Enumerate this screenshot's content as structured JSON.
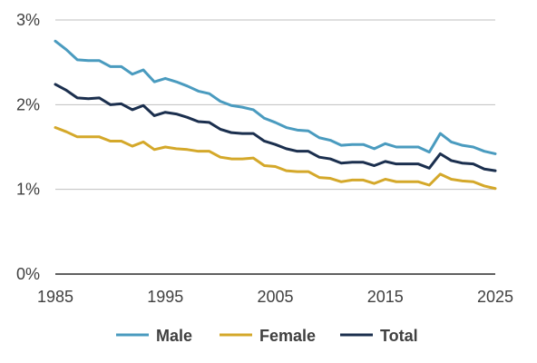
{
  "chart_data": {
    "type": "line",
    "title": "",
    "xlabel": "",
    "ylabel": "",
    "xlim": [
      1985,
      2025
    ],
    "ylim": [
      0,
      3
    ],
    "y_ticks": [
      {
        "value": 0,
        "label": "0%"
      },
      {
        "value": 1,
        "label": "1%"
      },
      {
        "value": 2,
        "label": "2%"
      },
      {
        "value": 3,
        "label": "3%"
      }
    ],
    "x_ticks": [
      {
        "value": 1985,
        "label": "1985"
      },
      {
        "value": 1995,
        "label": "1995"
      },
      {
        "value": 2005,
        "label": "2005"
      },
      {
        "value": 2015,
        "label": "2015"
      },
      {
        "value": 2025,
        "label": "2025"
      }
    ],
    "grid": "horizontal",
    "legend_position": "bottom",
    "x": [
      1985,
      1986,
      1987,
      1988,
      1989,
      1990,
      1991,
      1992,
      1993,
      1994,
      1995,
      1996,
      1997,
      1998,
      1999,
      2000,
      2001,
      2002,
      2003,
      2004,
      2005,
      2006,
      2007,
      2008,
      2009,
      2010,
      2011,
      2012,
      2013,
      2014,
      2015,
      2016,
      2017,
      2018,
      2019,
      2020,
      2021,
      2022,
      2023,
      2024,
      2025
    ],
    "series": [
      {
        "name": "Male",
        "color": "#4a9bbf",
        "values": [
          2.75,
          2.65,
          2.53,
          2.52,
          2.52,
          2.45,
          2.45,
          2.36,
          2.41,
          2.27,
          2.31,
          2.27,
          2.22,
          2.16,
          2.13,
          2.04,
          1.99,
          1.97,
          1.94,
          1.84,
          1.79,
          1.73,
          1.7,
          1.69,
          1.61,
          1.58,
          1.52,
          1.53,
          1.53,
          1.48,
          1.54,
          1.5,
          1.5,
          1.5,
          1.44,
          1.66,
          1.56,
          1.52,
          1.5,
          1.45,
          1.42
        ]
      },
      {
        "name": "Female",
        "color": "#d4a82a",
        "values": [
          1.73,
          1.68,
          1.62,
          1.62,
          1.62,
          1.57,
          1.57,
          1.51,
          1.56,
          1.47,
          1.5,
          1.48,
          1.47,
          1.45,
          1.45,
          1.38,
          1.36,
          1.36,
          1.37,
          1.28,
          1.27,
          1.22,
          1.21,
          1.21,
          1.14,
          1.13,
          1.09,
          1.11,
          1.11,
          1.07,
          1.12,
          1.09,
          1.09,
          1.09,
          1.05,
          1.18,
          1.12,
          1.1,
          1.09,
          1.04,
          1.01
        ]
      },
      {
        "name": "Total",
        "color": "#1b2f4e",
        "values": [
          2.24,
          2.17,
          2.08,
          2.07,
          2.08,
          2.0,
          2.01,
          1.94,
          1.99,
          1.87,
          1.91,
          1.89,
          1.85,
          1.8,
          1.79,
          1.71,
          1.67,
          1.66,
          1.66,
          1.57,
          1.53,
          1.48,
          1.45,
          1.45,
          1.38,
          1.36,
          1.31,
          1.32,
          1.32,
          1.28,
          1.33,
          1.3,
          1.3,
          1.3,
          1.25,
          1.42,
          1.34,
          1.31,
          1.3,
          1.24,
          1.22
        ]
      }
    ]
  }
}
